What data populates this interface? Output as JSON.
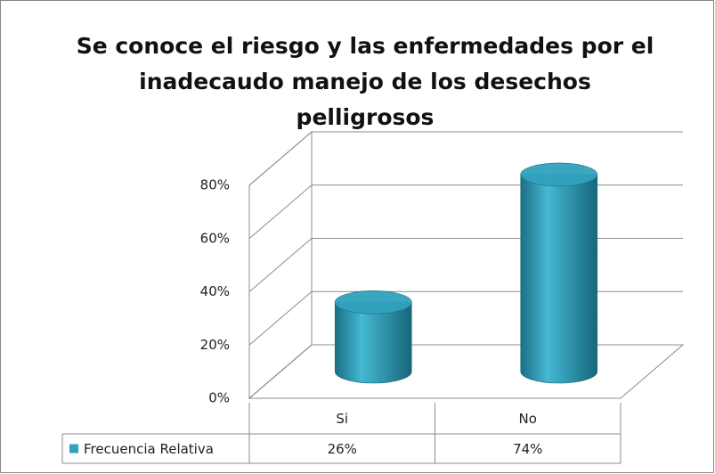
{
  "chart_data": {
    "type": "bar3d",
    "title": "Se conoce el riesgo y las enfermedades por el inadecaudo manejo de los desechos pelligrosos",
    "categories": [
      "Si",
      "No"
    ],
    "series": [
      {
        "name": "Frecuencia Relativa",
        "color": "#31a2bd",
        "values": [
          26,
          74
        ],
        "value_labels": [
          "26%",
          "74%"
        ]
      }
    ],
    "ylim": [
      0,
      80
    ],
    "yticks": [
      {
        "value": 0,
        "label": "0%"
      },
      {
        "value": 20,
        "label": "20%"
      },
      {
        "value": 40,
        "label": "40%"
      },
      {
        "value": 60,
        "label": "60%"
      },
      {
        "value": 80,
        "label": "80%"
      }
    ],
    "grid": true
  }
}
